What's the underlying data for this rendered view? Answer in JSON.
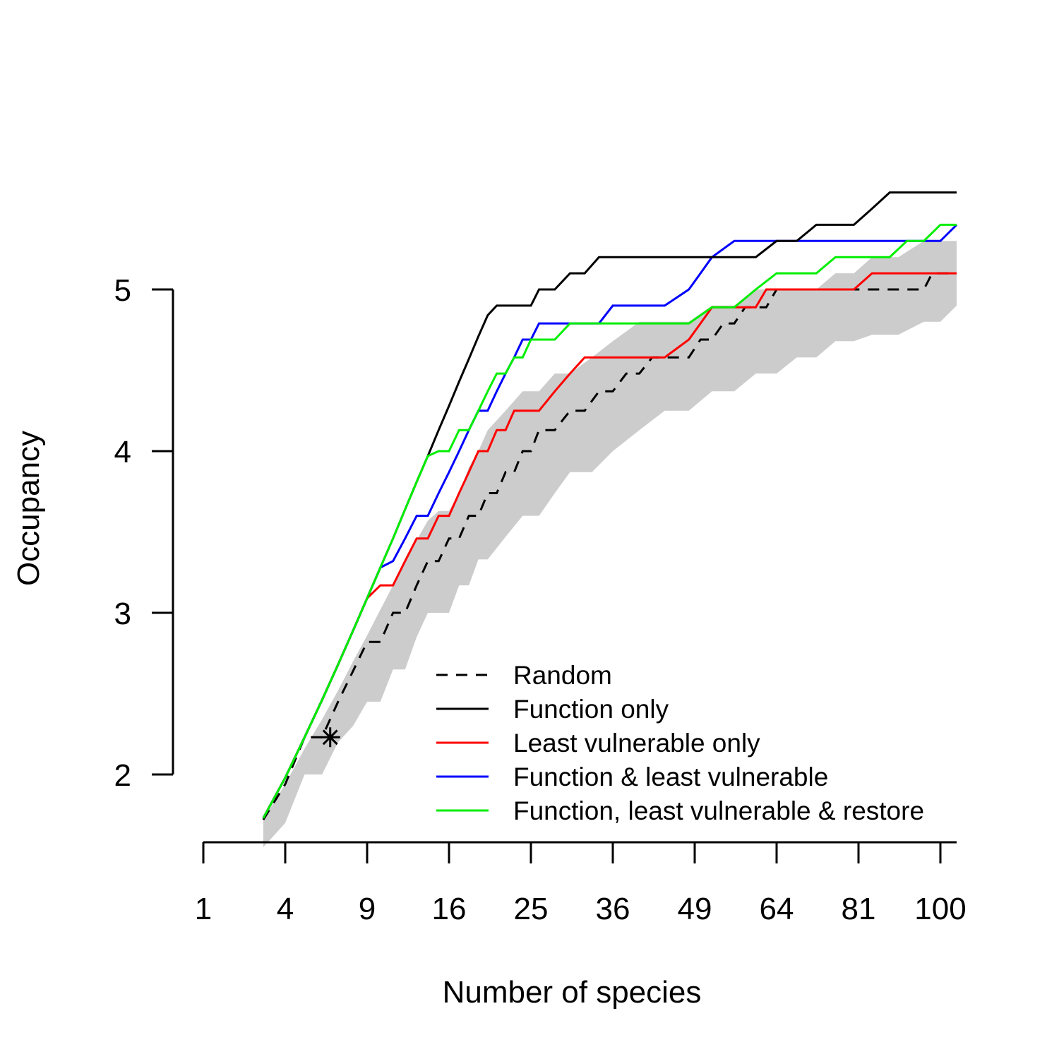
{
  "chart_data": {
    "type": "line",
    "xlabel": "Number of species",
    "ylabel": "Occupancy",
    "x_scale": "sqrt",
    "x_ticks": [
      1,
      4,
      9,
      16,
      25,
      36,
      49,
      64,
      81,
      100
    ],
    "x_tick_labels": [
      "1",
      "4",
      "9",
      "16",
      "25",
      "36",
      "49",
      "64",
      "81",
      "100"
    ],
    "y_ticks": [
      2,
      3,
      4,
      5
    ],
    "y_tick_labels": [
      "2",
      "3",
      "4",
      "5"
    ],
    "xlim": [
      1,
      104
    ],
    "ylim": [
      1.6,
      5.6
    ],
    "grid": false,
    "legend_position": "bottom-right",
    "legend_order": [
      "random",
      "function",
      "least_vuln",
      "func_least",
      "func_least_restore"
    ],
    "marker": {
      "symbol": "asterisk",
      "x": 6.5,
      "y": 2.23
    },
    "random_band": {
      "color": "#cccccc",
      "x": [
        3,
        4,
        5,
        6,
        7,
        8,
        9,
        10,
        11,
        12,
        13,
        14,
        15,
        16,
        17,
        18,
        19,
        20,
        22,
        24,
        26,
        28,
        30,
        33,
        36,
        40,
        44,
        48,
        52,
        56,
        60,
        64,
        68,
        72,
        76,
        80,
        84,
        90,
        96,
        100,
        104
      ],
      "lower": [
        1.55,
        1.7,
        2.0,
        2.0,
        2.2,
        2.3,
        2.45,
        2.45,
        2.65,
        2.65,
        2.85,
        3.0,
        3.0,
        3.0,
        3.17,
        3.17,
        3.33,
        3.33,
        3.47,
        3.6,
        3.6,
        3.74,
        3.87,
        3.87,
        4.0,
        4.13,
        4.25,
        4.25,
        4.37,
        4.37,
        4.48,
        4.48,
        4.58,
        4.58,
        4.68,
        4.68,
        4.72,
        4.72,
        4.8,
        4.8,
        4.9
      ],
      "upper": [
        1.72,
        1.94,
        2.16,
        2.34,
        2.52,
        2.7,
        2.86,
        3.02,
        3.17,
        3.32,
        3.45,
        3.57,
        3.63,
        3.63,
        3.74,
        3.9,
        4.0,
        4.13,
        4.25,
        4.37,
        4.37,
        4.48,
        4.48,
        4.58,
        4.68,
        4.8,
        4.8,
        4.8,
        4.9,
        4.9,
        5.0,
        5.0,
        5.0,
        5.0,
        5.1,
        5.1,
        5.2,
        5.2,
        5.3,
        5.3,
        5.3
      ]
    },
    "series": [
      {
        "key": "random",
        "name": "Random",
        "color": "#000000",
        "dash": "dashed",
        "x": [
          3,
          4,
          5,
          6,
          7,
          8,
          9,
          10,
          11,
          12,
          13,
          14,
          15,
          16,
          17,
          18,
          19,
          20,
          21,
          22,
          23,
          24,
          25,
          26,
          28,
          30,
          32,
          34,
          36,
          38,
          40,
          42,
          44,
          46,
          48,
          50,
          52,
          54,
          56,
          58,
          60,
          62,
          64,
          66,
          68,
          70,
          72,
          74,
          76,
          78,
          80,
          84,
          88,
          92,
          96,
          98,
          100,
          104
        ],
        "y": [
          1.72,
          1.94,
          2.23,
          2.23,
          2.45,
          2.64,
          2.82,
          2.82,
          3.0,
          3.0,
          3.17,
          3.32,
          3.32,
          3.46,
          3.46,
          3.6,
          3.6,
          3.74,
          3.74,
          3.87,
          3.87,
          4.0,
          4.0,
          4.13,
          4.13,
          4.25,
          4.25,
          4.37,
          4.37,
          4.48,
          4.48,
          4.58,
          4.58,
          4.58,
          4.58,
          4.69,
          4.69,
          4.79,
          4.79,
          4.89,
          4.89,
          4.89,
          5.0,
          5.0,
          5.0,
          5.0,
          5.0,
          5.0,
          5.0,
          5.0,
          5.0,
          5.0,
          5.0,
          5.0,
          5.0,
          5.1,
          5.1,
          5.1
        ]
      },
      {
        "key": "function",
        "name": "Function only",
        "color": "#000000",
        "dash": "solid",
        "x": [
          3,
          4,
          5,
          6,
          7,
          8,
          9,
          10,
          11,
          12,
          13,
          14,
          15,
          16,
          17,
          18,
          19,
          20,
          21,
          22,
          23,
          24,
          25,
          26,
          27,
          28,
          30,
          32,
          34,
          36,
          40,
          44,
          48,
          52,
          56,
          60,
          64,
          68,
          72,
          76,
          80,
          84,
          88,
          92,
          96,
          100,
          104
        ],
        "y": [
          1.73,
          1.98,
          2.23,
          2.46,
          2.68,
          2.89,
          3.09,
          3.28,
          3.46,
          3.64,
          3.81,
          3.97,
          4.13,
          4.28,
          4.43,
          4.57,
          4.71,
          4.84,
          4.9,
          4.9,
          4.9,
          4.9,
          4.9,
          5.0,
          5.0,
          5.0,
          5.1,
          5.1,
          5.2,
          5.2,
          5.2,
          5.2,
          5.2,
          5.2,
          5.2,
          5.2,
          5.3,
          5.3,
          5.4,
          5.4,
          5.4,
          5.5,
          5.6,
          5.6,
          5.6,
          5.6,
          5.6
        ]
      },
      {
        "key": "least_vuln",
        "name": "Least vulnerable only",
        "color": "#ff0000",
        "dash": "solid",
        "x": [
          3,
          4,
          5,
          6,
          7,
          8,
          9,
          10,
          11,
          12,
          13,
          14,
          15,
          16,
          17,
          18,
          19,
          20,
          21,
          22,
          23,
          24,
          25,
          26,
          28,
          30,
          32,
          34,
          36,
          40,
          44,
          48,
          50,
          52,
          54,
          56,
          58,
          60,
          62,
          64,
          66,
          68,
          70,
          72,
          76,
          80,
          84,
          88,
          92,
          96,
          100,
          104
        ],
        "y": [
          1.73,
          1.98,
          2.23,
          2.46,
          2.68,
          2.89,
          3.09,
          3.17,
          3.17,
          3.32,
          3.46,
          3.46,
          3.6,
          3.6,
          3.74,
          3.87,
          4.0,
          4.0,
          4.13,
          4.13,
          4.25,
          4.25,
          4.25,
          4.25,
          4.37,
          4.48,
          4.58,
          4.58,
          4.58,
          4.58,
          4.58,
          4.69,
          4.79,
          4.89,
          4.89,
          4.89,
          4.89,
          4.89,
          5.0,
          5.0,
          5.0,
          5.0,
          5.0,
          5.0,
          5.0,
          5.0,
          5.1,
          5.1,
          5.1,
          5.1,
          5.1,
          5.1
        ]
      },
      {
        "key": "func_least",
        "name": "Function & least vulnerable",
        "color": "#0000ff",
        "dash": "solid",
        "x": [
          3,
          4,
          5,
          6,
          7,
          8,
          9,
          10,
          11,
          12,
          13,
          14,
          15,
          16,
          17,
          18,
          19,
          20,
          21,
          22,
          23,
          24,
          25,
          26,
          27,
          28,
          30,
          32,
          34,
          36,
          40,
          44,
          48,
          50,
          52,
          56,
          60,
          64,
          68,
          72,
          76,
          80,
          84,
          88,
          92,
          96,
          100,
          104
        ],
        "y": [
          1.73,
          1.98,
          2.23,
          2.46,
          2.68,
          2.89,
          3.09,
          3.28,
          3.32,
          3.46,
          3.6,
          3.6,
          3.74,
          3.87,
          4.0,
          4.13,
          4.25,
          4.25,
          4.37,
          4.48,
          4.58,
          4.69,
          4.69,
          4.79,
          4.79,
          4.79,
          4.79,
          4.79,
          4.79,
          4.9,
          4.9,
          4.9,
          5.0,
          5.1,
          5.2,
          5.3,
          5.3,
          5.3,
          5.3,
          5.3,
          5.3,
          5.3,
          5.3,
          5.3,
          5.3,
          5.3,
          5.3,
          5.4
        ]
      },
      {
        "key": "func_least_restore",
        "name": "Function, least vulnerable & restore",
        "color": "#00ee00",
        "dash": "solid",
        "x": [
          3,
          4,
          5,
          6,
          7,
          8,
          9,
          10,
          11,
          12,
          13,
          14,
          15,
          16,
          17,
          18,
          19,
          20,
          21,
          22,
          23,
          24,
          25,
          26,
          28,
          30,
          32,
          34,
          36,
          40,
          44,
          48,
          52,
          56,
          60,
          64,
          68,
          72,
          76,
          80,
          84,
          88,
          92,
          96,
          100,
          104
        ],
        "y": [
          1.73,
          1.98,
          2.23,
          2.46,
          2.68,
          2.89,
          3.09,
          3.28,
          3.46,
          3.64,
          3.81,
          3.97,
          4.0,
          4.0,
          4.13,
          4.13,
          4.25,
          4.37,
          4.48,
          4.48,
          4.58,
          4.58,
          4.69,
          4.69,
          4.69,
          4.79,
          4.79,
          4.79,
          4.79,
          4.79,
          4.79,
          4.79,
          4.89,
          4.89,
          5.0,
          5.1,
          5.1,
          5.1,
          5.2,
          5.2,
          5.2,
          5.2,
          5.3,
          5.3,
          5.4,
          5.4
        ]
      }
    ]
  }
}
